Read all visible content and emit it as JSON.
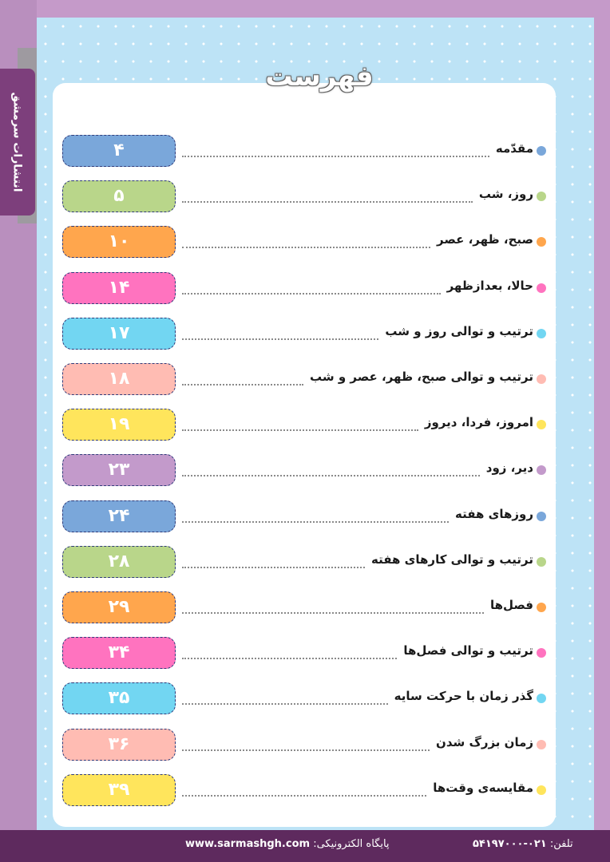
{
  "publisher": "انتشارات سرمشق",
  "title": "فهرست",
  "colors": {
    "blue": "#7aa7da",
    "green": "#b9d68a",
    "orange": "#ffa64d",
    "pink": "#ff73bf",
    "cyan": "#72d6f2",
    "salmon": "#ffbcb3",
    "yellow": "#ffe55c",
    "purple": "#c39acb"
  },
  "toc": [
    {
      "title": "مقدّمه",
      "page": "۴",
      "color": "#7aa7da"
    },
    {
      "title": "روز، شب",
      "page": "۵",
      "color": "#b9d68a"
    },
    {
      "title": "صبح، ظهر، عصر",
      "page": "۱۰",
      "color": "#ffa64d"
    },
    {
      "title": "حالا، بعدازظهر",
      "page": "۱۴",
      "color": "#ff73bf"
    },
    {
      "title": "ترتیب و توالی روز و شب",
      "page": "۱۷",
      "color": "#72d6f2"
    },
    {
      "title": "ترتیب و توالی صبح، ظهر، عصر و شب",
      "page": "۱۸",
      "color": "#ffbcb3"
    },
    {
      "title": "امروز، فردا، دیروز",
      "page": "۱۹",
      "color": "#ffe55c"
    },
    {
      "title": "دیر، زود",
      "page": "۲۳",
      "color": "#c39acb"
    },
    {
      "title": "روزهای هفته",
      "page": "۲۴",
      "color": "#7aa7da"
    },
    {
      "title": "ترتیب و توالی کارهای هفته",
      "page": "۲۸",
      "color": "#b9d68a"
    },
    {
      "title": "فصل‌ها",
      "page": "۲۹",
      "color": "#ffa64d"
    },
    {
      "title": "ترتیب و توالی فصل‌ها",
      "page": "۳۴",
      "color": "#ff73bf"
    },
    {
      "title": "گذر زمان با حرکت سایه",
      "page": "۳۵",
      "color": "#72d6f2"
    },
    {
      "title": "زمان بزرگ شدن",
      "page": "۳۶",
      "color": "#ffbcb3"
    },
    {
      "title": "مقایسه‌ی وقت‌ها",
      "page": "۳۹",
      "color": "#ffe55c"
    }
  ],
  "footer": {
    "website_label": "پایگاه الکترونیکی:",
    "website": "www.sarmashgh.com",
    "phone_label": "تلفن:",
    "phone": "۰۲۱-۵۴۱۹۷۰۰۰"
  }
}
